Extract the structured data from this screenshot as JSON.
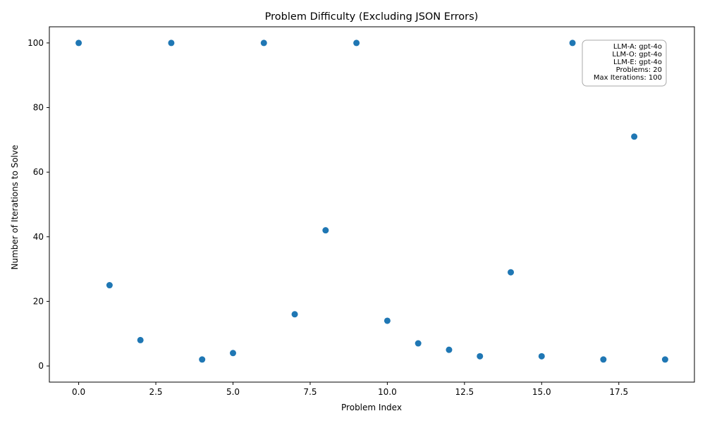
{
  "chart_data": {
    "type": "scatter",
    "title": "Problem Difficulty (Excluding JSON Errors)",
    "xlabel": "Problem Index",
    "ylabel": "Number of Iterations to Solve",
    "xlim": [
      -0.95,
      19.95
    ],
    "ylim": [
      -5,
      105
    ],
    "x_ticks": [
      0,
      2.5,
      5,
      7.5,
      10,
      12.5,
      15,
      17.5
    ],
    "x_tick_labels": [
      "0.0",
      "2.5",
      "5.0",
      "7.5",
      "10.0",
      "12.5",
      "15.0",
      "17.5"
    ],
    "y_ticks": [
      0,
      20,
      40,
      60,
      80,
      100
    ],
    "y_tick_labels": [
      "0",
      "20",
      "40",
      "60",
      "80",
      "100"
    ],
    "grid": false,
    "point_color": "#1f77b4",
    "points": [
      {
        "x": 0,
        "y": 100
      },
      {
        "x": 1,
        "y": 25
      },
      {
        "x": 2,
        "y": 8
      },
      {
        "x": 3,
        "y": 100
      },
      {
        "x": 4,
        "y": 2
      },
      {
        "x": 5,
        "y": 4
      },
      {
        "x": 6,
        "y": 100
      },
      {
        "x": 7,
        "y": 16
      },
      {
        "x": 8,
        "y": 42
      },
      {
        "x": 9,
        "y": 100
      },
      {
        "x": 10,
        "y": 14
      },
      {
        "x": 11,
        "y": 7
      },
      {
        "x": 12,
        "y": 5
      },
      {
        "x": 13,
        "y": 3
      },
      {
        "x": 14,
        "y": 29
      },
      {
        "x": 15,
        "y": 3
      },
      {
        "x": 16,
        "y": 100
      },
      {
        "x": 17,
        "y": 2
      },
      {
        "x": 18,
        "y": 71
      },
      {
        "x": 19,
        "y": 2
      }
    ],
    "annotation": {
      "placement": "top-right",
      "lines": [
        "LLM-A: gpt-4o",
        "LLM-O: gpt-4o",
        "LLM-E: gpt-4o",
        "Problems: 20",
        "Max Iterations: 100"
      ]
    }
  }
}
